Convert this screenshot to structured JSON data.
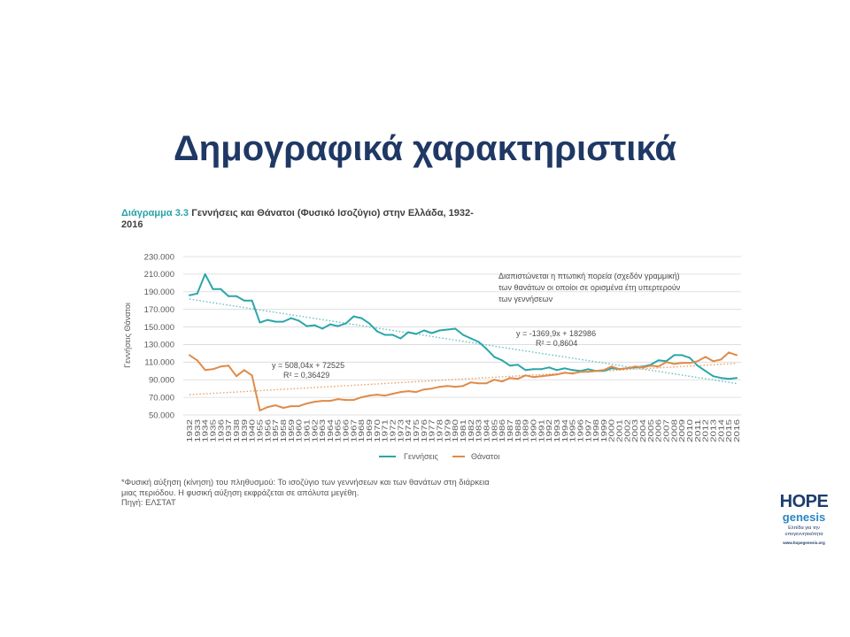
{
  "slide": {
    "title": "Δημογραφικά χαρακτηριστικά"
  },
  "theme": {
    "title_color": "#1f3864",
    "figure_label_color": "#2aa3a8",
    "logo_navy": "#1d3d6e",
    "logo_blue": "#2a86c4"
  },
  "footnote": {
    "line1": "*Φυσική αύξηση (κίνηση) του πληθυσμού: Το ισοζύγιο των γεννήσεων και των θανάτων στη διάρκεια",
    "line2": "μιας περιόδου. Η φυσική αύξηση εκφράζεται σε απόλυτα μεγέθη.",
    "source": "Πηγή: ΕΛΣΤΑΤ"
  },
  "logo": {
    "word1": "HOPE",
    "word2": "genesis",
    "tagline1": "Ελπίδα για την",
    "tagline2": "υπογεννητικότητα",
    "url": "www.hopegenesis.org"
  },
  "chart_data": {
    "type": "line",
    "label": "Διάγραμμα 3.3",
    "title_line1": "Γεννήσεις και Θάνατοι (Φυσικό Ισοζύγιο) στην Ελλάδα, 1932-",
    "title_line2": "2016",
    "ylabel": "Γεννήσεις Θάνατοι",
    "ylim": [
      50000,
      230000
    ],
    "y_ticks": [
      230000,
      210000,
      190000,
      170000,
      150000,
      130000,
      110000,
      90000,
      70000,
      50000
    ],
    "y_tick_labels": [
      "230.000",
      "210.000",
      "190.000",
      "170.000",
      "150.000",
      "130.000",
      "110.000",
      "90.000",
      "70.000",
      "50.000"
    ],
    "grid": true,
    "legend": "bottom",
    "categories": [
      "1932",
      "1933",
      "1934",
      "1935",
      "1936",
      "1937",
      "1938",
      "1939",
      "1940",
      "1955",
      "1956",
      "1957",
      "1958",
      "1959",
      "1960",
      "1961",
      "1962",
      "1963",
      "1964",
      "1965",
      "1966",
      "1967",
      "1968",
      "1969",
      "1970",
      "1971",
      "1972",
      "1973",
      "1974",
      "1975",
      "1976",
      "1977",
      "1978",
      "1979",
      "1980",
      "1981",
      "1982",
      "1983",
      "1984",
      "1985",
      "1986",
      "1987",
      "1988",
      "1989",
      "1990",
      "1991",
      "1992",
      "1993",
      "1994",
      "1995",
      "1996",
      "1997",
      "1998",
      "1999",
      "2000",
      "2001",
      "2002",
      "2003",
      "2004",
      "2005",
      "2006",
      "2007",
      "2008",
      "2009",
      "2010",
      "2011",
      "2012",
      "2013",
      "2014",
      "2015",
      "2016"
    ],
    "series": [
      {
        "name": "Γεννήσεις",
        "color": "#2aa6a9",
        "values": [
          186000,
          188000,
          210000,
          193000,
          193000,
          185000,
          185000,
          180000,
          180000,
          155000,
          158000,
          156000,
          156000,
          160000,
          157000,
          151000,
          152000,
          148000,
          153000,
          151000,
          154000,
          162000,
          160000,
          154000,
          145000,
          141000,
          141000,
          137000,
          144000,
          142000,
          146000,
          143000,
          146000,
          147000,
          148000,
          141000,
          137000,
          133000,
          125000,
          116000,
          112000,
          106000,
          107000,
          101000,
          102000,
          102000,
          104000,
          101000,
          103000,
          101000,
          100000,
          102000,
          100000,
          100000,
          103000,
          102000,
          103000,
          104000,
          105000,
          107000,
          112000,
          111000,
          118000,
          118000,
          115000,
          106000,
          100000,
          94000,
          92000,
          91000,
          92000
        ]
      },
      {
        "name": "Θάνατοι",
        "color": "#df8b4a",
        "values": [
          118000,
          112000,
          101000,
          102000,
          105000,
          106000,
          94000,
          101000,
          95000,
          55000,
          59000,
          61000,
          58000,
          60000,
          60000,
          63000,
          65000,
          66000,
          66000,
          68000,
          67000,
          67000,
          70000,
          72000,
          73000,
          72000,
          74000,
          76000,
          77000,
          76000,
          79000,
          80000,
          82000,
          83000,
          82000,
          83000,
          87000,
          86000,
          86000,
          90000,
          88000,
          92000,
          91000,
          95000,
          93000,
          94000,
          95000,
          96000,
          98000,
          97000,
          99000,
          99000,
          100000,
          101000,
          105000,
          102000,
          103000,
          105000,
          104000,
          106000,
          105000,
          110000,
          108000,
          109000,
          109000,
          111000,
          116000,
          111000,
          113000,
          121000,
          118000
        ]
      }
    ],
    "trendlines": [
      {
        "series_index": 0,
        "slope": -1369.9,
        "intercept": 182986,
        "color": "#6cc3c4",
        "equation": "y = -1369,9x + 182986",
        "r2": "R² = 0,8604"
      },
      {
        "series_index": 1,
        "slope": 508.04,
        "intercept": 72525,
        "color": "#e9a56f",
        "equation": "y = 508,04x + 72525",
        "r2": "R² = 0,36429"
      }
    ],
    "annotation": [
      "Διαπιστώνεται η πτωτική πορεία (σχεδόν γραμμική)",
      "των θανάτων οι οποίοι σε ορισμένα έτη υπερτερούν",
      "των γεννήσεων"
    ]
  }
}
